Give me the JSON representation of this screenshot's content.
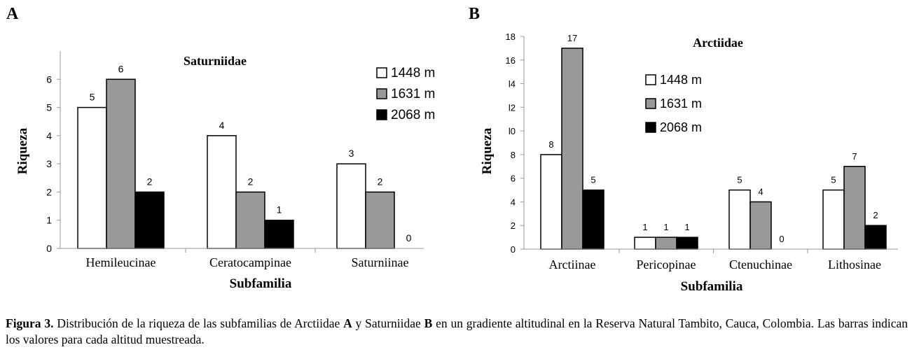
{
  "panels": [
    {
      "letter": "A"
    },
    {
      "letter": "B"
    }
  ],
  "legend": [
    {
      "label": "1448 m",
      "color": "#ffffff"
    },
    {
      "label": "1631 m",
      "color": "#999999"
    },
    {
      "label": "2068 m",
      "color": "#000000"
    }
  ],
  "chart_data": [
    {
      "type": "bar",
      "title": "Saturniidae",
      "xlabel": "Subfamilia",
      "ylabel": "Riqueza",
      "ylim": [
        0,
        7
      ],
      "yticks": [
        "0",
        "1",
        "2",
        "3",
        "4",
        "5",
        "6"
      ],
      "categories": [
        "Hemileucinae",
        "Ceratocampinae",
        "Saturniinae"
      ],
      "series": [
        {
          "name": "1448 m",
          "values": [
            5,
            4,
            3
          ]
        },
        {
          "name": "1631 m",
          "values": [
            6,
            2,
            2
          ]
        },
        {
          "name": "2068 m",
          "values": [
            2,
            1,
            0
          ]
        }
      ],
      "legend_position": "top-right"
    },
    {
      "type": "bar",
      "title": "Arctiidae",
      "xlabel": "Subfamilia",
      "ylabel": "Riqueza",
      "ylim": [
        0,
        18
      ],
      "yticks": [
        "0",
        "2",
        "4",
        "6",
        "8",
        "l0",
        "l2",
        "l4",
        "16",
        "18"
      ],
      "categories": [
        "Arctiinae",
        "Pericopinae",
        "Ctenuchinae",
        "Lithosinae"
      ],
      "series": [
        {
          "name": "1448 m",
          "values": [
            8,
            1,
            5,
            5
          ]
        },
        {
          "name": "1631 m",
          "values": [
            17,
            1,
            4,
            7
          ]
        },
        {
          "name": "2068 m",
          "values": [
            5,
            1,
            0,
            2
          ]
        }
      ],
      "legend_position": "top-center"
    }
  ],
  "caption": {
    "label": "Figura 3.",
    "t1": " Distribución de la riqueza de las subfamilias de Arctiidae ",
    "b1": "A",
    "t2": " y Saturniidae ",
    "b2": "B",
    "t3": " en un gradiente altitudinal en la Reserva Natural Tambito, Cauca, Colombia. Las barras indican los valores para cada altitud muestreada."
  }
}
